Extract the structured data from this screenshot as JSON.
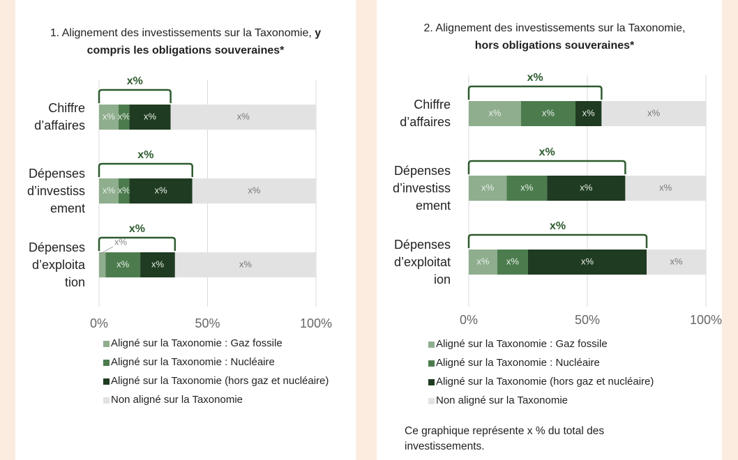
{
  "chart_data": [
    {
      "type": "bar",
      "orientation": "horizontal",
      "stacked": true,
      "title": "1. Alignement des investissements sur la Taxonomie, ",
      "title_bold": "y compris les obligations souveraines*",
      "categories": [
        "Chiffre\nd’affaires",
        "Dépenses\nd’investiss\nement",
        "Dépenses\nd’exploita\ntion"
      ],
      "series": [
        {
          "name": "Aligné sur la Taxonomie : Gaz fossile",
          "color": "#8fae8e",
          "values": [
            9,
            9,
            3
          ],
          "value_labels": [
            "x%",
            "x%",
            "x%"
          ]
        },
        {
          "name": "Aligné sur la Taxonomie : Nucléaire",
          "color": "#4c7c4e",
          "values": [
            5,
            5,
            16
          ],
          "value_labels": [
            "x%",
            "x%",
            "x%"
          ]
        },
        {
          "name": "Aligné sur la Taxonomie (hors gaz et nucléaire)",
          "color": "#1f3b21",
          "values": [
            19,
            29,
            16
          ],
          "value_labels": [
            "x%",
            "x%",
            "x%"
          ]
        },
        {
          "name": "Non aligné sur la Taxonomie",
          "color": "#e2e2e2",
          "values": [
            67,
            57,
            65
          ],
          "value_labels": [
            "x%",
            "x%",
            "x%"
          ]
        }
      ],
      "bracket_labels": [
        "x%",
        "x%",
        "x%"
      ],
      "xlim": [
        0,
        100
      ],
      "xticks": [
        {
          "value": 0,
          "label": "0%"
        },
        {
          "value": 50,
          "label": "50%"
        },
        {
          "value": 100,
          "label": "100%"
        }
      ],
      "grid": true
    },
    {
      "type": "bar",
      "orientation": "horizontal",
      "stacked": true,
      "title": "2. Alignement des investissements sur la Taxonomie, ",
      "title_bold": "hors obligations souveraines*",
      "categories": [
        "Chiffre\nd’affaires",
        "Dépenses\nd’investiss\nement",
        "Dépenses\nd’exploitat\nion"
      ],
      "series": [
        {
          "name": "Aligné sur la Taxonomie : Gaz fossile",
          "color": "#8fae8e",
          "values": [
            22,
            16,
            12
          ],
          "value_labels": [
            "x%",
            "x%",
            "x%"
          ]
        },
        {
          "name": "Aligné sur la Taxonomie : Nucléaire",
          "color": "#4c7c4e",
          "values": [
            23,
            17,
            13
          ],
          "value_labels": [
            "x%",
            "x%",
            "x%"
          ]
        },
        {
          "name": "Aligné sur la Taxonomie (hors gaz et nucléaire)",
          "color": "#1f3b21",
          "values": [
            11,
            33,
            50
          ],
          "value_labels": [
            "x%",
            "x%",
            "x%"
          ]
        },
        {
          "name": "Non aligné sur la Taxonomie",
          "color": "#e2e2e2",
          "values": [
            44,
            34,
            25
          ],
          "value_labels": [
            "x%",
            "x%",
            "x%"
          ]
        }
      ],
      "bracket_labels": [
        "x%",
        "x%",
        "x%"
      ],
      "xlim": [
        0,
        100
      ],
      "xticks": [
        {
          "value": 0,
          "label": "0%"
        },
        {
          "value": 50,
          "label": "50%"
        },
        {
          "value": 100,
          "label": "100%"
        }
      ],
      "grid": true,
      "footnote": "Ce graphique représente x % du total des investissements."
    }
  ]
}
